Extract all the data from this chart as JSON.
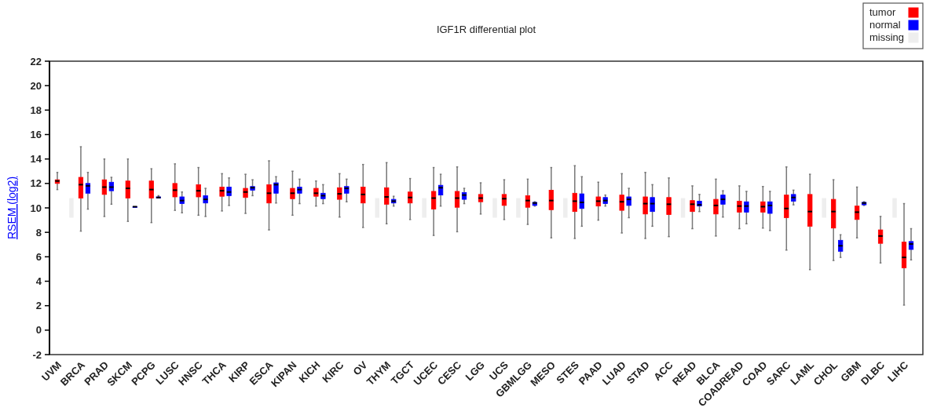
{
  "chart_data": {
    "type": "box",
    "title": "IGF1R differential plot",
    "ylabel": "RSEM (log2)",
    "ylim": [
      -2,
      22
    ],
    "yticks": [
      -2,
      0,
      2,
      4,
      6,
      8,
      10,
      12,
      14,
      16,
      18,
      20,
      22
    ],
    "grid": false,
    "legend": "top right",
    "categories": [
      "UVM",
      "BRCA",
      "PRAD",
      "SKCM",
      "PCPG",
      "LUSC",
      "HNSC",
      "THCA",
      "KIRP",
      "ESCA",
      "KIPAN",
      "KICH",
      "KIRC",
      "OV",
      "THYM",
      "TGCT",
      "UCEC",
      "CESC",
      "LGG",
      "UCS",
      "GBMLGG",
      "MESO",
      "STES",
      "PAAD",
      "LUAD",
      "STAD",
      "ACC",
      "READ",
      "BLCA",
      "COADREAD",
      "COAD",
      "SARC",
      "LAML",
      "CHOL",
      "GBM",
      "DLBC",
      "LIHC"
    ],
    "series": [
      {
        "name": "tumor",
        "color": "#ff0000",
        "boxes": [
          {
            "low": 11.5,
            "q1": 12.0,
            "median": 12.2,
            "q3": 12.3,
            "high": 12.9
          },
          {
            "low": 8.1,
            "q1": 10.8,
            "median": 11.9,
            "q3": 12.5,
            "high": 15.0
          },
          {
            "low": 9.3,
            "q1": 11.1,
            "median": 11.7,
            "q3": 12.3,
            "high": 14.0
          },
          {
            "low": 8.9,
            "q1": 10.8,
            "median": 11.6,
            "q3": 12.2,
            "high": 14.0
          },
          {
            "low": 8.8,
            "q1": 10.8,
            "median": 11.5,
            "q3": 12.2,
            "high": 13.2
          },
          {
            "low": 9.8,
            "q1": 10.9,
            "median": 11.45,
            "q3": 12.0,
            "high": 13.6
          },
          {
            "low": 9.4,
            "q1": 10.9,
            "median": 11.4,
            "q3": 11.9,
            "high": 13.3
          },
          {
            "low": 9.75,
            "q1": 10.95,
            "median": 11.4,
            "q3": 11.7,
            "high": 12.8
          },
          {
            "low": 9.55,
            "q1": 10.85,
            "median": 11.3,
            "q3": 11.6,
            "high": 12.75
          },
          {
            "low": 8.2,
            "q1": 10.4,
            "median": 11.2,
            "q3": 11.9,
            "high": 13.85
          },
          {
            "low": 9.4,
            "q1": 10.75,
            "median": 11.2,
            "q3": 11.6,
            "high": 13.0
          },
          {
            "low": 10.15,
            "q1": 10.95,
            "median": 11.2,
            "q3": 11.6,
            "high": 12.2
          },
          {
            "low": 9.25,
            "q1": 10.7,
            "median": 11.15,
            "q3": 11.65,
            "high": 12.8
          },
          {
            "low": 8.4,
            "q1": 10.4,
            "median": 11.1,
            "q3": 11.7,
            "high": 13.55
          },
          {
            "low": 8.7,
            "q1": 10.3,
            "median": 10.9,
            "q3": 11.65,
            "high": 13.7
          },
          {
            "low": 9.05,
            "q1": 10.4,
            "median": 10.85,
            "q3": 11.3,
            "high": 12.4
          },
          {
            "low": 7.75,
            "q1": 9.9,
            "median": 10.8,
            "q3": 11.35,
            "high": 13.3
          },
          {
            "low": 8.05,
            "q1": 10.05,
            "median": 10.8,
            "q3": 11.35,
            "high": 13.35
          },
          {
            "low": 9.5,
            "q1": 10.5,
            "median": 10.8,
            "q3": 11.1,
            "high": 12.05
          },
          {
            "low": 9.05,
            "q1": 10.2,
            "median": 10.75,
            "q3": 11.1,
            "high": 12.3
          },
          {
            "low": 8.65,
            "q1": 10.05,
            "median": 10.6,
            "q3": 11.0,
            "high": 12.35
          },
          {
            "low": 7.55,
            "q1": 9.85,
            "median": 10.6,
            "q3": 11.45,
            "high": 13.3
          },
          {
            "low": 7.5,
            "q1": 9.7,
            "median": 10.55,
            "q3": 11.2,
            "high": 13.45
          },
          {
            "low": 9.0,
            "q1": 10.15,
            "median": 10.55,
            "q3": 10.9,
            "high": 12.1
          },
          {
            "low": 7.95,
            "q1": 9.8,
            "median": 10.5,
            "q3": 11.05,
            "high": 12.8
          },
          {
            "low": 7.5,
            "q1": 9.5,
            "median": 10.35,
            "q3": 10.9,
            "high": 12.9
          },
          {
            "low": 7.65,
            "q1": 9.45,
            "median": 10.3,
            "q3": 10.85,
            "high": 12.45
          },
          {
            "low": 8.3,
            "q1": 9.7,
            "median": 10.3,
            "q3": 10.6,
            "high": 11.8
          },
          {
            "low": 7.7,
            "q1": 9.5,
            "median": 10.2,
            "q3": 10.7,
            "high": 12.35
          },
          {
            "low": 8.3,
            "q1": 9.65,
            "median": 10.15,
            "q3": 10.55,
            "high": 11.8
          },
          {
            "low": 8.35,
            "q1": 9.65,
            "median": 10.1,
            "q3": 10.5,
            "high": 11.75
          },
          {
            "low": 6.55,
            "q1": 9.2,
            "median": 9.95,
            "q3": 11.05,
            "high": 13.35
          },
          {
            "low": 4.95,
            "q1": 8.5,
            "median": 9.7,
            "q3": 11.1,
            "high": 12.75
          },
          {
            "low": 5.7,
            "q1": 8.35,
            "median": 9.7,
            "q3": 10.7,
            "high": 12.3
          },
          {
            "low": 7.55,
            "q1": 9.05,
            "median": 9.65,
            "q3": 10.15,
            "high": 11.7
          },
          {
            "low": 5.5,
            "q1": 7.1,
            "median": 7.7,
            "q3": 8.2,
            "high": 9.3
          },
          {
            "low": 2.05,
            "q1": 5.1,
            "median": 5.95,
            "q3": 7.2,
            "high": 10.35
          }
        ]
      },
      {
        "name": "normal",
        "color": "#0000ff",
        "boxes": [
          null,
          {
            "low": 9.9,
            "q1": 11.2,
            "median": 11.8,
            "q3": 12.0,
            "high": 12.9
          },
          {
            "low": 10.3,
            "q1": 11.4,
            "median": 11.7,
            "q3": 12.1,
            "high": 12.5
          },
          {
            "low": 10.1,
            "q1": 10.1,
            "median": 10.1,
            "q3": 10.1,
            "high": 10.1
          },
          {
            "low": 10.8,
            "q1": 10.8,
            "median": 10.85,
            "q3": 10.9,
            "high": 11.0
          },
          {
            "low": 9.6,
            "q1": 10.35,
            "median": 10.6,
            "q3": 10.9,
            "high": 11.3
          },
          {
            "low": 9.3,
            "q1": 10.4,
            "median": 10.7,
            "q3": 11.0,
            "high": 11.6
          },
          {
            "low": 10.2,
            "q1": 11.0,
            "median": 11.3,
            "q3": 11.7,
            "high": 12.45
          },
          {
            "low": 11.0,
            "q1": 11.45,
            "median": 11.65,
            "q3": 11.75,
            "high": 12.3
          },
          {
            "low": 10.4,
            "q1": 11.2,
            "median": 11.9,
            "q3": 12.05,
            "high": 12.55
          },
          {
            "low": 10.35,
            "q1": 11.2,
            "median": 11.5,
            "q3": 11.7,
            "high": 12.35
          },
          {
            "low": 10.35,
            "q1": 10.75,
            "median": 11.0,
            "q3": 11.2,
            "high": 11.9
          },
          {
            "low": 10.5,
            "q1": 11.2,
            "median": 11.6,
            "q3": 11.75,
            "high": 12.35
          },
          null,
          {
            "low": 10.15,
            "q1": 10.4,
            "median": 10.55,
            "q3": 10.7,
            "high": 10.95
          },
          null,
          {
            "low": 10.15,
            "q1": 11.05,
            "median": 11.65,
            "q3": 11.85,
            "high": 12.75
          },
          {
            "low": 10.35,
            "q1": 10.7,
            "median": 11.05,
            "q3": 11.25,
            "high": 11.6
          },
          null,
          null,
          {
            "low": 10.15,
            "q1": 10.2,
            "median": 10.4,
            "q3": 10.45,
            "high": 10.5
          },
          null,
          {
            "low": 8.5,
            "q1": 9.95,
            "median": 10.45,
            "q3": 11.15,
            "high": 12.55
          },
          {
            "low": 10.15,
            "q1": 10.35,
            "median": 10.6,
            "q3": 10.85,
            "high": 11.05
          },
          {
            "low": 9.2,
            "q1": 10.2,
            "median": 10.7,
            "q3": 10.9,
            "high": 11.6
          },
          {
            "low": 8.5,
            "q1": 9.7,
            "median": 10.35,
            "q3": 10.85,
            "high": 11.9
          },
          null,
          {
            "low": 9.7,
            "q1": 10.15,
            "median": 10.25,
            "q3": 10.55,
            "high": 11.1
          },
          {
            "low": 9.25,
            "q1": 10.3,
            "median": 10.7,
            "q3": 11.05,
            "high": 11.4
          },
          {
            "low": 8.7,
            "q1": 9.65,
            "median": 10.15,
            "q3": 10.5,
            "high": 11.35
          },
          {
            "low": 8.15,
            "q1": 9.55,
            "median": 10.2,
            "q3": 10.5,
            "high": 11.35
          },
          {
            "low": 10.25,
            "q1": 10.55,
            "median": 10.85,
            "q3": 11.1,
            "high": 11.45
          },
          null,
          {
            "low": 5.95,
            "q1": 6.45,
            "median": 6.9,
            "q3": 7.35,
            "high": 7.8
          },
          {
            "low": 10.2,
            "q1": 10.25,
            "median": 10.4,
            "q3": 10.45,
            "high": 10.5
          },
          null,
          {
            "low": 5.75,
            "q1": 6.6,
            "median": 7.05,
            "q3": 7.25,
            "high": 8.3
          }
        ]
      },
      {
        "name": "missing",
        "type": "bar",
        "color": "#eeeeee",
        "base": [
          9.2,
          null,
          null,
          null,
          null,
          null,
          null,
          null,
          null,
          null,
          null,
          null,
          null,
          9.2,
          null,
          9.2,
          null,
          null,
          9.2,
          9.2,
          null,
          9.2,
          null,
          null,
          null,
          null,
          9.2,
          null,
          null,
          null,
          null,
          null,
          9.2,
          null,
          null,
          9.2,
          null
        ],
        "values": [
          1.6,
          null,
          null,
          null,
          null,
          null,
          null,
          null,
          null,
          null,
          null,
          null,
          null,
          1.6,
          null,
          1.6,
          null,
          null,
          1.6,
          1.6,
          null,
          1.6,
          null,
          null,
          null,
          null,
          1.6,
          null,
          null,
          null,
          null,
          null,
          1.6,
          null,
          null,
          1.6,
          null
        ]
      }
    ]
  }
}
